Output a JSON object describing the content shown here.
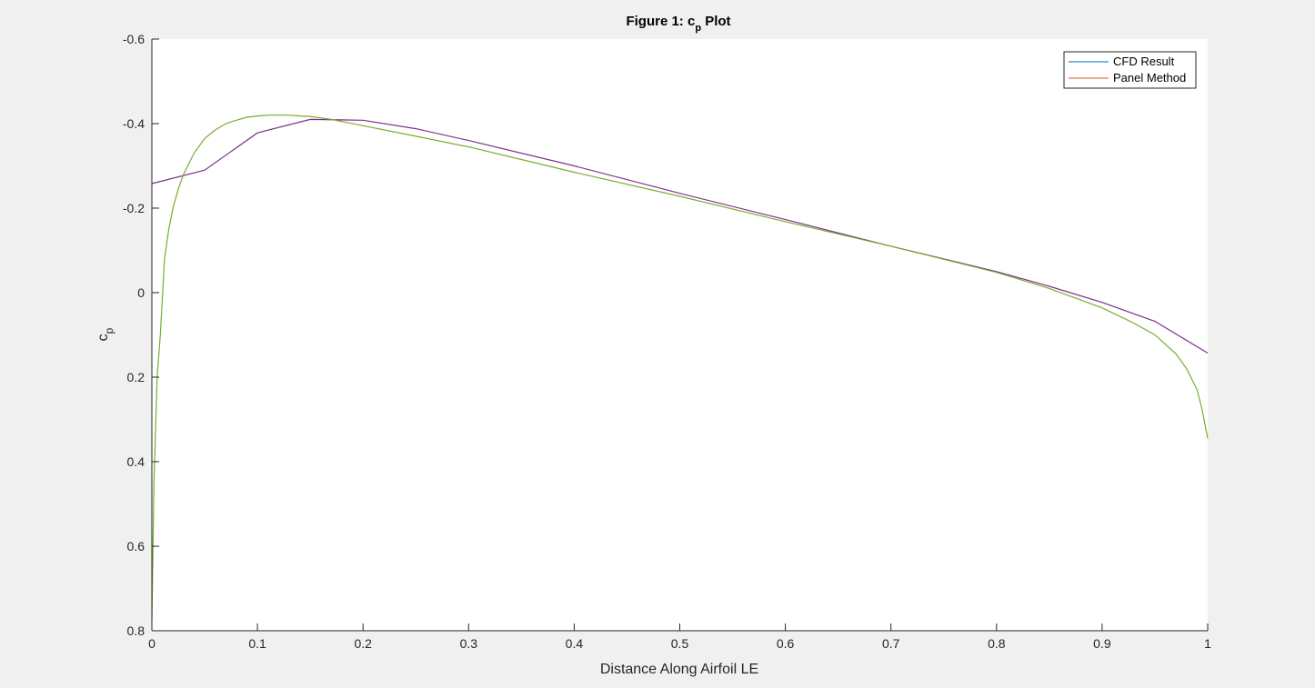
{
  "chart_data": {
    "type": "line",
    "title_main": "Figure 1: c",
    "title_sub": "p",
    "title_end": " Plot",
    "xlabel": "Distance Along Airfoil LE",
    "ylabel_main": "c",
    "ylabel_sub": "p",
    "xlim": [
      0,
      1
    ],
    "ylim": [
      -0.6,
      0.8
    ],
    "y_reversed": true,
    "grid": false,
    "legend_position": "top-right",
    "xticks": [
      0,
      0.1,
      0.2,
      0.3,
      0.4,
      0.5,
      0.6,
      0.7,
      0.8,
      0.9,
      1
    ],
    "xtick_labels": [
      "0",
      "0.1",
      "0.2",
      "0.3",
      "0.4",
      "0.5",
      "0.6",
      "0.7",
      "0.8",
      "0.9",
      "1"
    ],
    "yticks": [
      -0.6,
      -0.4,
      -0.2,
      0,
      0.2,
      0.4,
      0.6,
      0.8
    ],
    "ytick_labels": [
      "-0.6",
      "-0.4",
      "-0.2",
      "0",
      "0.2",
      "0.4",
      "0.6",
      "0.8"
    ],
    "legend": [
      {
        "label": "CFD Result",
        "color": "#0072bd"
      },
      {
        "label": "Panel Method",
        "color": "#d95319"
      }
    ],
    "series": [
      {
        "name": "CFD Result",
        "color": "#7e2f8e",
        "x": [
          0,
          0.05,
          0.1,
          0.15,
          0.2,
          0.25,
          0.3,
          0.4,
          0.5,
          0.6,
          0.7,
          0.8,
          0.85,
          0.9,
          0.95,
          1
        ],
        "y": [
          -0.258,
          -0.29,
          -0.378,
          -0.41,
          -0.408,
          -0.388,
          -0.36,
          -0.3,
          -0.235,
          -0.173,
          -0.11,
          -0.05,
          -0.015,
          0.023,
          0.068,
          0.143
        ]
      },
      {
        "name": "Panel Method",
        "color": "#77ac30",
        "x": [
          0,
          0.002,
          0.005,
          0.008,
          0.012,
          0.016,
          0.02,
          0.025,
          0.03,
          0.04,
          0.05,
          0.06,
          0.07,
          0.08,
          0.09,
          0.1,
          0.11,
          0.12,
          0.13,
          0.14,
          0.15,
          0.17,
          0.2,
          0.25,
          0.3,
          0.4,
          0.5,
          0.6,
          0.7,
          0.8,
          0.85,
          0.9,
          0.93,
          0.95,
          0.97,
          0.98,
          0.99,
          0.995,
          1
        ],
        "y": [
          0.775,
          0.45,
          0.2,
          0.1,
          -0.08,
          -0.15,
          -0.2,
          -0.245,
          -0.28,
          -0.33,
          -0.365,
          -0.385,
          -0.4,
          -0.408,
          -0.415,
          -0.418,
          -0.42,
          -0.42,
          -0.42,
          -0.418,
          -0.417,
          -0.41,
          -0.395,
          -0.37,
          -0.345,
          -0.285,
          -0.228,
          -0.168,
          -0.11,
          -0.048,
          -0.01,
          0.036,
          0.072,
          0.1,
          0.145,
          0.18,
          0.23,
          0.28,
          0.345
        ]
      }
    ]
  }
}
